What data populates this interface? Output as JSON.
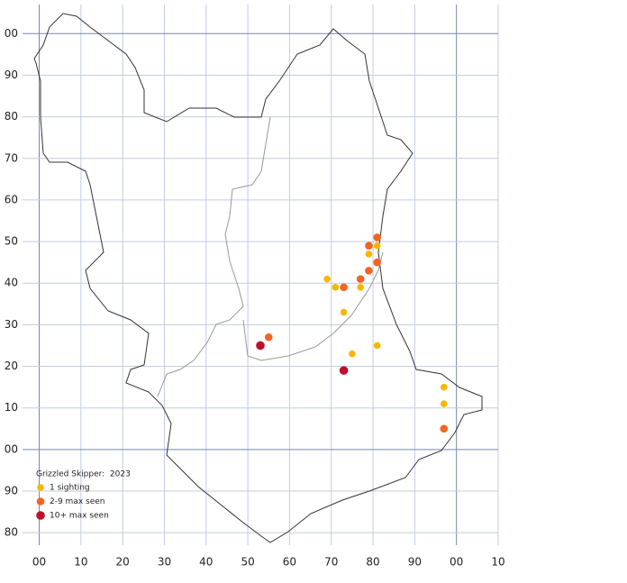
{
  "chart_data": {
    "type": "scatter",
    "title": "Grizzled Skipper:  2023",
    "xlim": [
      -4,
      110
    ],
    "ylim": [
      -23,
      107
    ],
    "xticks": [
      {
        "value": 0,
        "label": "00"
      },
      10,
      20,
      30,
      40,
      50,
      60,
      70,
      80,
      90,
      {
        "value": 100,
        "label": "00"
      },
      {
        "value": 110,
        "label": "10"
      }
    ],
    "yticks": [
      {
        "value": 100,
        "label": "00"
      },
      90,
      80,
      70,
      60,
      50,
      40,
      30,
      20,
      10,
      {
        "value": 0,
        "label": "00"
      },
      {
        "value": -10,
        "label": "90"
      },
      {
        "value": -20,
        "label": "80"
      }
    ],
    "grid": true,
    "series": [
      {
        "name": "1 sighting",
        "color": "#f5b800",
        "x": [
          69,
          71,
          77,
          73,
          75,
          81,
          79,
          81,
          97,
          97
        ],
        "y": [
          41,
          39,
          39,
          33,
          23,
          25,
          47,
          49,
          15,
          11
        ]
      },
      {
        "name": "2-9 max seen",
        "color": "#f26522",
        "x": [
          81,
          79,
          81,
          79,
          77,
          73,
          55,
          97
        ],
        "y": [
          51,
          49,
          45,
          43,
          41,
          39,
          27,
          5
        ]
      },
      {
        "name": "10+ max seen",
        "color": "#c0102a",
        "x": [
          53,
          73
        ],
        "y": [
          25,
          19
        ]
      }
    ]
  }
}
